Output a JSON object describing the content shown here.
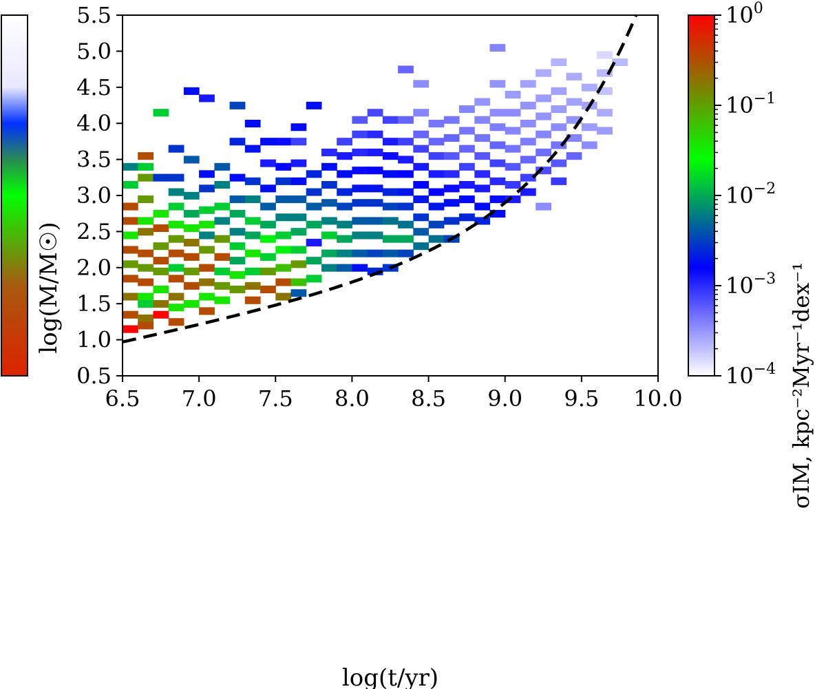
{
  "chart_data": {
    "type": "heatmap",
    "xlabel": "log(t/yr)",
    "ylabel": "log(M/M☉)",
    "colorbar_label": "σIM, kpc⁻²Myr⁻¹dex⁻¹",
    "xlim": [
      6.5,
      10.0
    ],
    "ylim": [
      0.5,
      5.5
    ],
    "x_ticks": [
      "6.5",
      "7.0",
      "7.5",
      "8.0",
      "8.5",
      "9.0",
      "9.5",
      "10.0"
    ],
    "y_ticks": [
      "0.5",
      "1.0",
      "1.5",
      "2.0",
      "2.5",
      "3.0",
      "3.5",
      "4.0",
      "4.5",
      "5.0",
      "5.5"
    ],
    "colorbar_scale": "log",
    "colorbar_range": [
      0.0001,
      1
    ],
    "colorbar_ticks": [
      "10^0",
      "10^-1",
      "10^-2",
      "10^-3",
      "10^-4"
    ],
    "colormap": [
      "#ffffff",
      "#0000ff",
      "#00ff00",
      "#ff0000"
    ],
    "curve": {
      "style": "dashed",
      "color": "#000000"
    },
    "cells": [
      [
        6.55,
        1.15,
        1.0
      ],
      [
        6.55,
        1.35,
        0.9
      ],
      [
        6.55,
        1.6,
        0.85
      ],
      [
        6.55,
        1.85,
        0.9
      ],
      [
        6.55,
        2.05,
        0.8
      ],
      [
        6.55,
        2.25,
        0.9
      ],
      [
        6.55,
        2.45,
        0.7
      ],
      [
        6.55,
        2.65,
        0.9
      ],
      [
        6.55,
        2.85,
        0.9
      ],
      [
        6.55,
        3.15,
        0.6
      ],
      [
        6.55,
        3.4,
        0.5
      ],
      [
        6.65,
        3.55,
        0.9
      ],
      [
        6.65,
        3.4,
        0.6
      ],
      [
        6.65,
        3.25,
        0.8
      ],
      [
        6.65,
        2.95,
        0.8
      ],
      [
        6.65,
        2.65,
        0.7
      ],
      [
        6.65,
        2.5,
        0.85
      ],
      [
        6.65,
        2.2,
        0.9
      ],
      [
        6.65,
        2.0,
        0.8
      ],
      [
        6.65,
        1.8,
        0.9
      ],
      [
        6.65,
        1.6,
        0.7
      ],
      [
        6.65,
        1.5,
        0.6
      ],
      [
        6.65,
        1.3,
        0.85
      ],
      [
        6.65,
        1.2,
        0.9
      ],
      [
        6.75,
        4.15,
        0.6
      ],
      [
        6.75,
        3.25,
        0.4
      ],
      [
        6.75,
        2.75,
        0.7
      ],
      [
        6.75,
        2.55,
        0.9
      ],
      [
        6.75,
        2.3,
        0.8
      ],
      [
        6.75,
        2.1,
        0.9
      ],
      [
        6.75,
        1.95,
        0.8
      ],
      [
        6.75,
        1.7,
        0.7
      ],
      [
        6.75,
        1.5,
        0.85
      ],
      [
        6.75,
        1.35,
        1.0
      ],
      [
        6.85,
        3.65,
        0.4
      ],
      [
        6.85,
        3.25,
        0.4
      ],
      [
        6.85,
        3.05,
        0.5
      ],
      [
        6.85,
        2.85,
        0.6
      ],
      [
        6.85,
        2.6,
        0.7
      ],
      [
        6.85,
        2.4,
        0.8
      ],
      [
        6.85,
        2.2,
        0.9
      ],
      [
        6.85,
        2.0,
        0.6
      ],
      [
        6.85,
        1.85,
        0.9
      ],
      [
        6.85,
        1.6,
        0.85
      ],
      [
        6.85,
        1.45,
        0.7
      ],
      [
        6.85,
        1.25,
        0.9
      ],
      [
        6.95,
        4.45,
        0.35
      ],
      [
        6.95,
        3.5,
        0.45
      ],
      [
        6.95,
        3.0,
        0.5
      ],
      [
        6.95,
        2.75,
        0.55
      ],
      [
        6.95,
        2.55,
        0.7
      ],
      [
        6.95,
        2.35,
        0.85
      ],
      [
        6.95,
        2.15,
        0.9
      ],
      [
        6.95,
        1.95,
        0.8
      ],
      [
        6.95,
        1.75,
        0.9
      ],
      [
        6.95,
        1.5,
        0.7
      ],
      [
        7.05,
        4.35,
        0.3
      ],
      [
        7.05,
        3.3,
        0.35
      ],
      [
        7.05,
        3.1,
        0.4
      ],
      [
        7.05,
        2.8,
        0.6
      ],
      [
        7.05,
        2.6,
        0.7
      ],
      [
        7.05,
        2.45,
        0.5
      ],
      [
        7.05,
        2.25,
        0.8
      ],
      [
        7.05,
        2.0,
        0.9
      ],
      [
        7.05,
        1.8,
        0.85
      ],
      [
        7.05,
        1.6,
        0.7
      ],
      [
        7.05,
        1.4,
        0.9
      ],
      [
        7.15,
        3.4,
        0.45
      ],
      [
        7.15,
        3.15,
        0.5
      ],
      [
        7.15,
        2.85,
        0.6
      ],
      [
        7.15,
        2.65,
        0.5
      ],
      [
        7.15,
        2.4,
        0.8
      ],
      [
        7.15,
        2.15,
        0.9
      ],
      [
        7.15,
        1.95,
        0.6
      ],
      [
        7.15,
        1.75,
        0.8
      ],
      [
        7.15,
        1.55,
        0.7
      ],
      [
        7.25,
        4.25,
        0.42
      ],
      [
        7.25,
        3.75,
        0.38
      ],
      [
        7.25,
        3.25,
        0.35
      ],
      [
        7.25,
        2.95,
        0.45
      ],
      [
        7.25,
        2.75,
        0.55
      ],
      [
        7.25,
        2.5,
        0.5
      ],
      [
        7.25,
        2.3,
        0.6
      ],
      [
        7.25,
        2.1,
        0.55
      ],
      [
        7.25,
        1.9,
        0.7
      ],
      [
        7.25,
        1.7,
        0.8
      ],
      [
        7.35,
        4.0,
        0.35
      ],
      [
        7.35,
        3.65,
        0.36
      ],
      [
        7.35,
        3.2,
        0.4
      ],
      [
        7.35,
        2.95,
        0.5
      ],
      [
        7.35,
        2.65,
        0.6
      ],
      [
        7.35,
        2.45,
        0.55
      ],
      [
        7.35,
        2.2,
        0.7
      ],
      [
        7.35,
        1.95,
        0.6
      ],
      [
        7.35,
        1.75,
        0.85
      ],
      [
        7.35,
        1.55,
        0.9
      ],
      [
        7.45,
        3.75,
        0.35
      ],
      [
        7.45,
        3.45,
        0.3
      ],
      [
        7.45,
        3.1,
        0.35
      ],
      [
        7.45,
        2.85,
        0.45
      ],
      [
        7.45,
        2.6,
        0.55
      ],
      [
        7.45,
        2.4,
        0.65
      ],
      [
        7.45,
        2.15,
        0.6
      ],
      [
        7.45,
        1.95,
        0.8
      ],
      [
        7.45,
        1.7,
        0.9
      ],
      [
        7.55,
        3.75,
        0.32
      ],
      [
        7.55,
        3.4,
        0.33
      ],
      [
        7.55,
        3.2,
        0.4
      ],
      [
        7.55,
        2.95,
        0.45
      ],
      [
        7.55,
        2.7,
        0.5
      ],
      [
        7.55,
        2.45,
        0.6
      ],
      [
        7.55,
        2.25,
        0.65
      ],
      [
        7.55,
        2.0,
        0.75
      ],
      [
        7.55,
        1.8,
        0.9
      ],
      [
        7.55,
        1.6,
        0.85
      ],
      [
        7.65,
        3.95,
        0.35
      ],
      [
        7.65,
        3.75,
        0.25
      ],
      [
        7.65,
        3.45,
        0.3
      ],
      [
        7.65,
        3.2,
        0.35
      ],
      [
        7.65,
        2.95,
        0.45
      ],
      [
        7.65,
        2.7,
        0.5
      ],
      [
        7.65,
        2.5,
        0.55
      ],
      [
        7.65,
        2.25,
        0.6
      ],
      [
        7.65,
        2.05,
        0.8
      ],
      [
        7.65,
        1.8,
        0.75
      ],
      [
        7.65,
        1.65,
        0.45
      ],
      [
        7.75,
        4.25,
        0.35
      ],
      [
        7.75,
        3.3,
        0.38
      ],
      [
        7.75,
        3.05,
        0.4
      ],
      [
        7.75,
        2.85,
        0.45
      ],
      [
        7.75,
        2.6,
        0.55
      ],
      [
        7.75,
        2.35,
        0.3
      ],
      [
        7.75,
        2.1,
        0.55
      ],
      [
        7.75,
        1.85,
        0.6
      ],
      [
        7.85,
        3.6,
        0.28
      ],
      [
        7.85,
        3.4,
        0.35
      ],
      [
        7.85,
        3.15,
        0.4
      ],
      [
        7.85,
        2.9,
        0.45
      ],
      [
        7.85,
        2.65,
        0.5
      ],
      [
        7.85,
        2.45,
        0.6
      ],
      [
        7.85,
        2.2,
        0.55
      ],
      [
        7.85,
        2.0,
        0.5
      ],
      [
        7.95,
        3.75,
        0.25
      ],
      [
        7.95,
        3.55,
        0.3
      ],
      [
        7.95,
        3.3,
        0.35
      ],
      [
        7.95,
        3.05,
        0.38
      ],
      [
        7.95,
        2.85,
        0.42
      ],
      [
        7.95,
        2.6,
        0.5
      ],
      [
        7.95,
        2.4,
        0.55
      ],
      [
        7.95,
        2.2,
        0.5
      ],
      [
        7.95,
        2.0,
        0.45
      ],
      [
        8.05,
        4.05,
        0.22
      ],
      [
        8.05,
        3.85,
        0.25
      ],
      [
        8.05,
        3.6,
        0.28
      ],
      [
        8.05,
        3.35,
        0.32
      ],
      [
        8.05,
        3.1,
        0.36
      ],
      [
        8.05,
        2.9,
        0.4
      ],
      [
        8.05,
        2.65,
        0.45
      ],
      [
        8.05,
        2.45,
        0.5
      ],
      [
        8.05,
        2.2,
        0.45
      ],
      [
        8.05,
        2.0,
        0.35
      ],
      [
        8.15,
        4.15,
        0.24
      ],
      [
        8.15,
        3.85,
        0.28
      ],
      [
        8.15,
        3.6,
        0.3
      ],
      [
        8.15,
        3.35,
        0.33
      ],
      [
        8.15,
        3.1,
        0.36
      ],
      [
        8.15,
        2.9,
        0.4
      ],
      [
        8.15,
        2.65,
        0.45
      ],
      [
        8.15,
        2.45,
        0.5
      ],
      [
        8.15,
        2.2,
        0.42
      ],
      [
        8.15,
        1.95,
        0.38
      ],
      [
        8.25,
        4.05,
        0.25
      ],
      [
        8.25,
        3.75,
        0.3
      ],
      [
        8.25,
        3.55,
        0.32
      ],
      [
        8.25,
        3.3,
        0.35
      ],
      [
        8.25,
        3.05,
        0.38
      ],
      [
        8.25,
        2.85,
        0.42
      ],
      [
        8.25,
        2.65,
        0.48
      ],
      [
        8.25,
        2.4,
        0.55
      ],
      [
        8.25,
        2.2,
        0.45
      ],
      [
        8.25,
        2.0,
        0.4
      ],
      [
        8.35,
        4.75,
        0.2
      ],
      [
        8.35,
        4.05,
        0.2
      ],
      [
        8.35,
        3.75,
        0.25
      ],
      [
        8.35,
        3.5,
        0.3
      ],
      [
        8.35,
        3.3,
        0.33
      ],
      [
        8.35,
        3.05,
        0.36
      ],
      [
        8.35,
        2.85,
        0.4
      ],
      [
        8.35,
        2.6,
        0.48
      ],
      [
        8.35,
        2.4,
        0.55
      ],
      [
        8.35,
        2.2,
        0.42
      ],
      [
        8.45,
        4.55,
        0.15
      ],
      [
        8.45,
        4.15,
        0.16
      ],
      [
        8.45,
        3.85,
        0.2
      ],
      [
        8.45,
        3.65,
        0.25
      ],
      [
        8.45,
        3.4,
        0.3
      ],
      [
        8.45,
        3.15,
        0.33
      ],
      [
        8.45,
        2.95,
        0.36
      ],
      [
        8.45,
        2.7,
        0.4
      ],
      [
        8.45,
        2.5,
        0.45
      ],
      [
        8.45,
        2.3,
        0.48
      ],
      [
        8.55,
        4.0,
        0.18
      ],
      [
        8.55,
        3.75,
        0.2
      ],
      [
        8.55,
        3.55,
        0.25
      ],
      [
        8.55,
        3.3,
        0.3
      ],
      [
        8.55,
        3.05,
        0.33
      ],
      [
        8.55,
        2.85,
        0.36
      ],
      [
        8.55,
        2.6,
        0.42
      ],
      [
        8.55,
        2.4,
        0.48
      ],
      [
        8.65,
        4.05,
        0.18
      ],
      [
        8.65,
        3.8,
        0.2
      ],
      [
        8.65,
        3.55,
        0.22
      ],
      [
        8.65,
        3.3,
        0.28
      ],
      [
        8.65,
        3.1,
        0.32
      ],
      [
        8.65,
        2.9,
        0.35
      ],
      [
        8.65,
        2.65,
        0.4
      ],
      [
        8.65,
        2.4,
        0.42
      ],
      [
        8.75,
        4.2,
        0.16
      ],
      [
        8.75,
        3.9,
        0.18
      ],
      [
        8.75,
        3.65,
        0.2
      ],
      [
        8.75,
        3.4,
        0.25
      ],
      [
        8.75,
        3.15,
        0.3
      ],
      [
        8.75,
        2.95,
        0.33
      ],
      [
        8.75,
        2.7,
        0.38
      ],
      [
        8.85,
        4.3,
        0.14
      ],
      [
        8.85,
        4.05,
        0.16
      ],
      [
        8.85,
        3.8,
        0.18
      ],
      [
        8.85,
        3.55,
        0.22
      ],
      [
        8.85,
        3.3,
        0.28
      ],
      [
        8.85,
        3.1,
        0.3
      ],
      [
        8.85,
        2.85,
        0.35
      ],
      [
        8.85,
        2.65,
        0.38
      ],
      [
        8.95,
        5.05,
        0.16
      ],
      [
        8.95,
        4.55,
        0.14
      ],
      [
        8.95,
        4.15,
        0.15
      ],
      [
        8.95,
        3.95,
        0.17
      ],
      [
        8.95,
        3.7,
        0.2
      ],
      [
        8.95,
        3.45,
        0.25
      ],
      [
        8.95,
        3.2,
        0.28
      ],
      [
        8.95,
        2.95,
        0.32
      ],
      [
        8.95,
        2.75,
        0.35
      ],
      [
        9.05,
        4.4,
        0.13
      ],
      [
        9.05,
        4.15,
        0.15
      ],
      [
        9.05,
        3.9,
        0.16
      ],
      [
        9.05,
        3.65,
        0.18
      ],
      [
        9.05,
        3.4,
        0.22
      ],
      [
        9.05,
        3.15,
        0.26
      ],
      [
        9.05,
        2.95,
        0.3
      ],
      [
        9.15,
        4.55,
        0.12
      ],
      [
        9.15,
        4.25,
        0.14
      ],
      [
        9.15,
        4.0,
        0.15
      ],
      [
        9.15,
        3.75,
        0.17
      ],
      [
        9.15,
        3.5,
        0.2
      ],
      [
        9.15,
        3.25,
        0.25
      ],
      [
        9.15,
        3.05,
        0.3
      ],
      [
        9.25,
        4.7,
        0.11
      ],
      [
        9.25,
        4.35,
        0.13
      ],
      [
        9.25,
        4.1,
        0.14
      ],
      [
        9.25,
        3.85,
        0.16
      ],
      [
        9.25,
        3.6,
        0.19
      ],
      [
        9.25,
        3.35,
        0.23
      ],
      [
        9.25,
        2.85,
        0.15
      ],
      [
        9.35,
        4.85,
        0.1
      ],
      [
        9.35,
        4.45,
        0.12
      ],
      [
        9.35,
        4.2,
        0.13
      ],
      [
        9.35,
        3.95,
        0.15
      ],
      [
        9.35,
        3.7,
        0.18
      ],
      [
        9.35,
        3.45,
        0.22
      ],
      [
        9.35,
        3.2,
        0.26
      ],
      [
        9.45,
        4.65,
        0.11
      ],
      [
        9.45,
        4.3,
        0.12
      ],
      [
        9.45,
        4.05,
        0.14
      ],
      [
        9.45,
        3.8,
        0.16
      ],
      [
        9.45,
        3.55,
        0.2
      ],
      [
        9.55,
        4.5,
        0.11
      ],
      [
        9.55,
        4.25,
        0.12
      ],
      [
        9.55,
        3.95,
        0.13
      ],
      [
        9.55,
        3.7,
        0.15
      ],
      [
        9.65,
        4.95,
        0.05
      ],
      [
        9.65,
        4.7,
        0.09
      ],
      [
        9.65,
        4.45,
        0.08
      ],
      [
        9.65,
        4.15,
        0.11
      ],
      [
        9.65,
        3.9,
        0.13
      ],
      [
        9.75,
        4.85,
        0.09
      ]
    ]
  }
}
